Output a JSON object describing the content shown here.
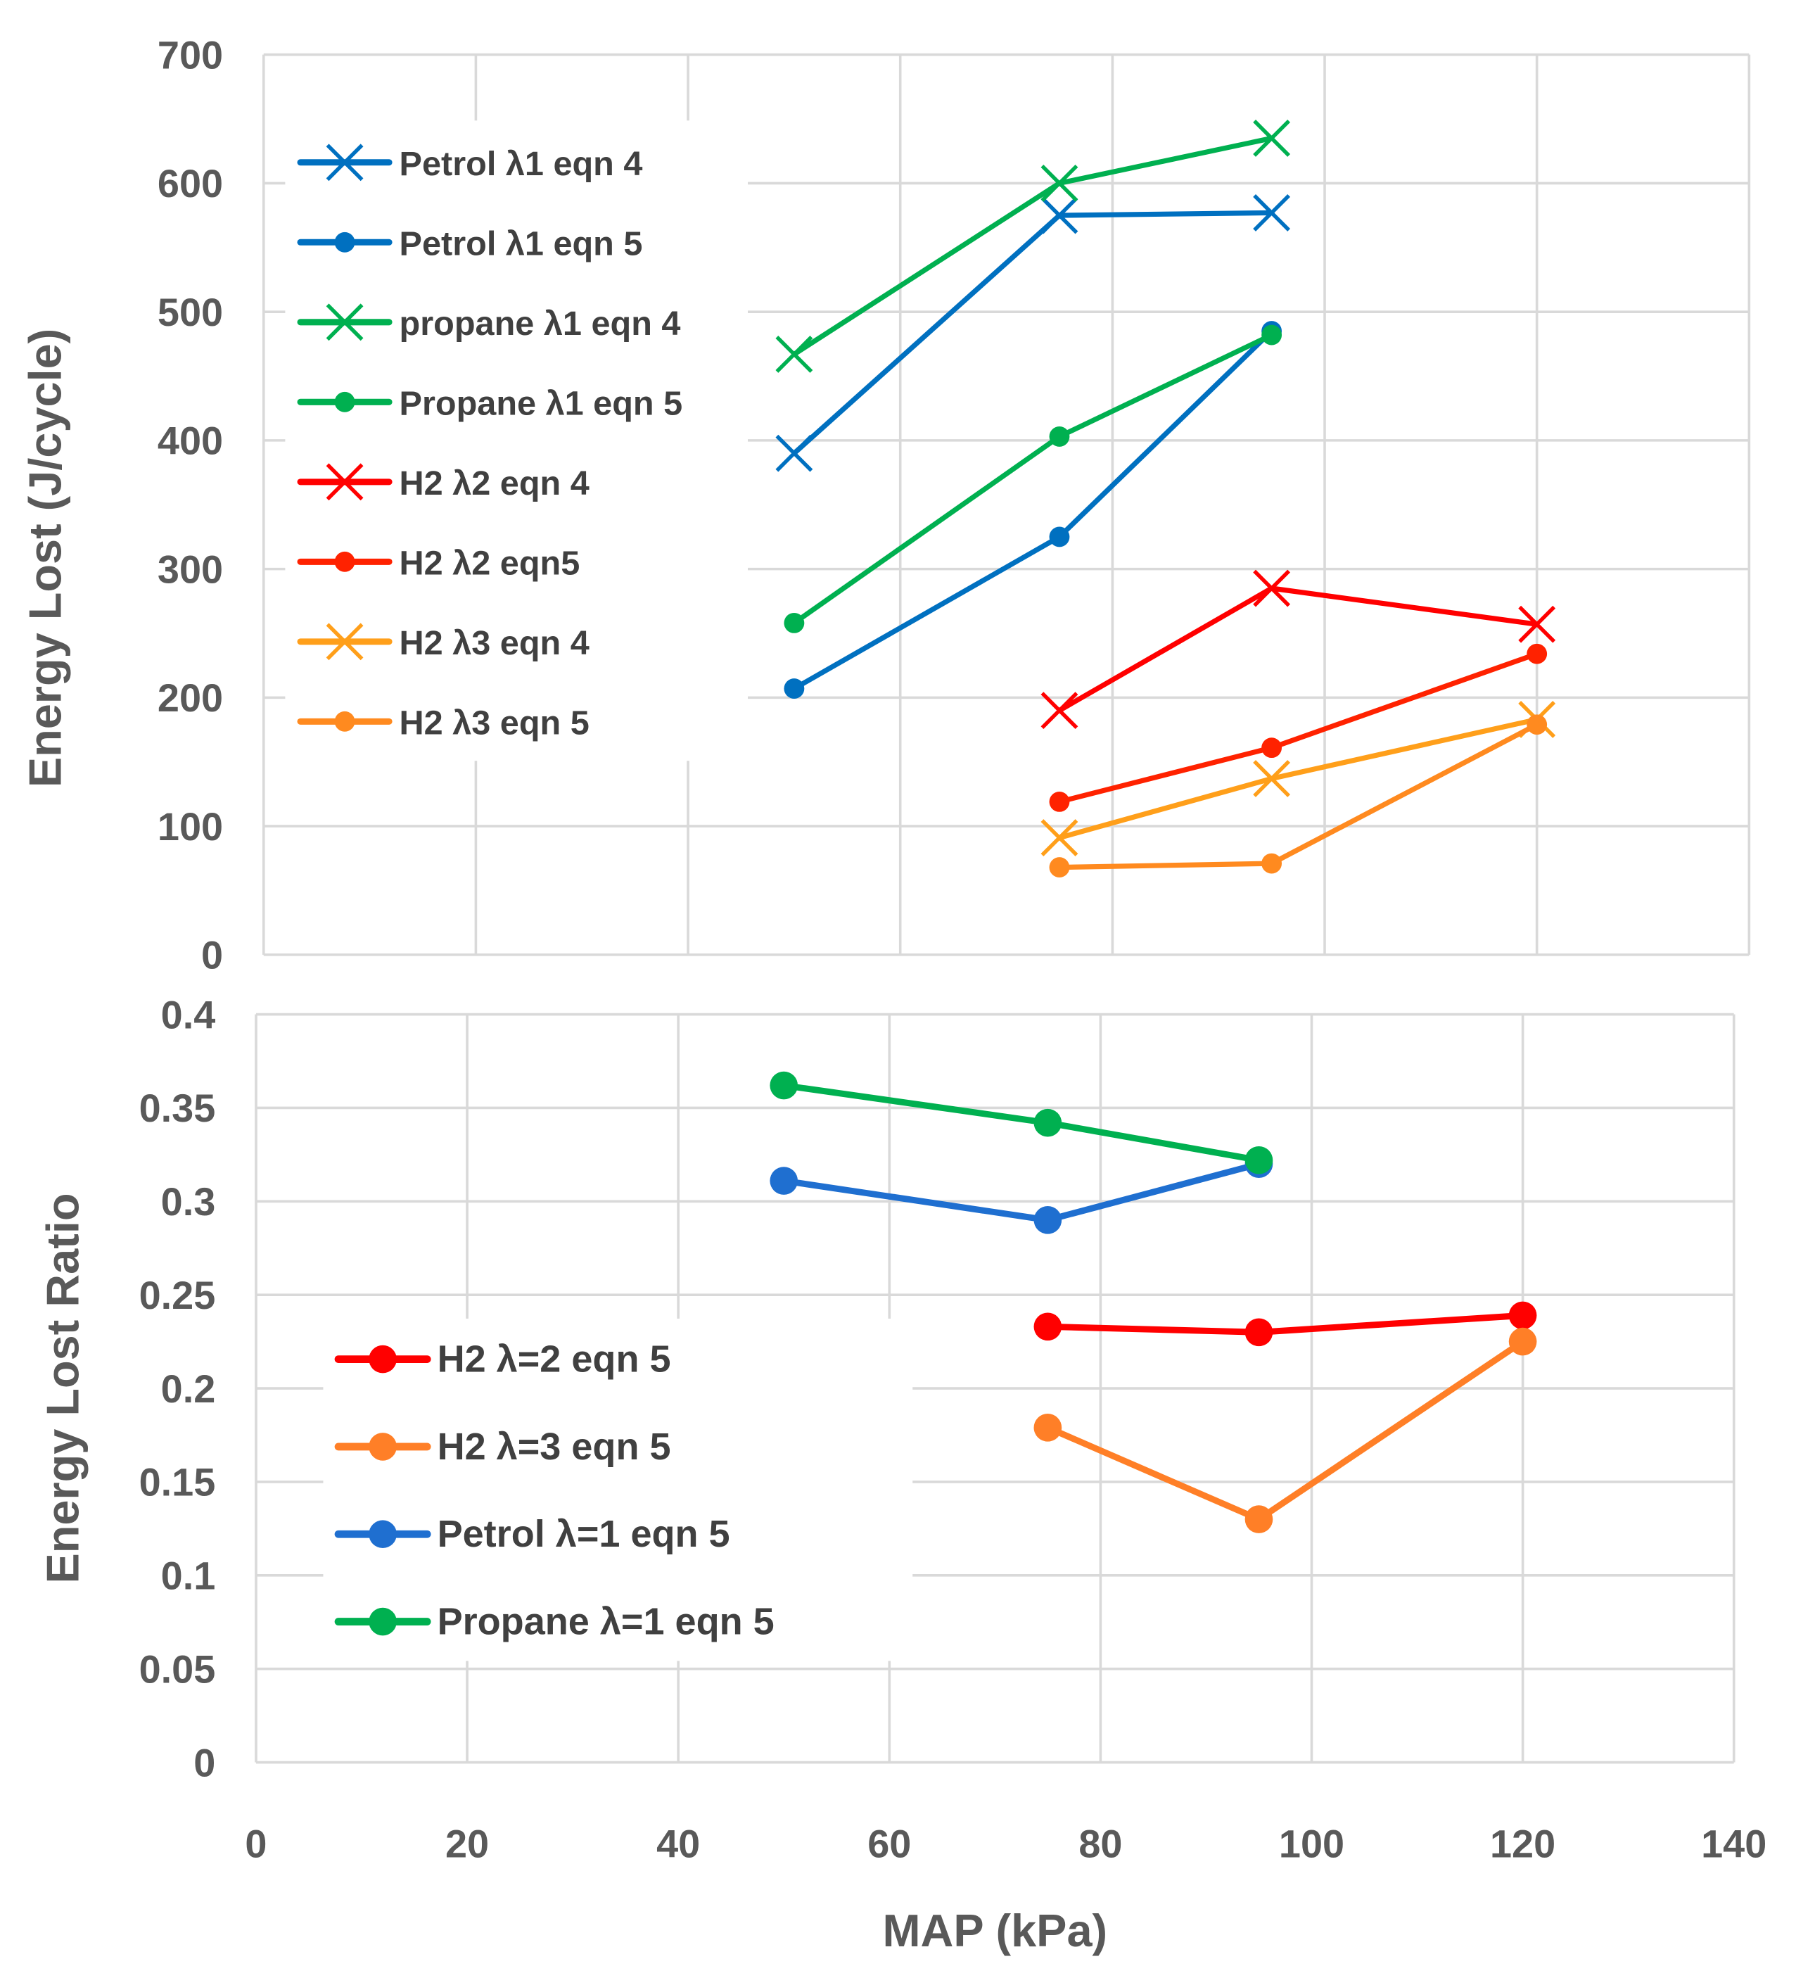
{
  "chart_data": [
    {
      "type": "line",
      "title": "",
      "xlabel": "",
      "ylabel": "Energy Lost   (J/cycle)",
      "xlim": [
        0,
        140
      ],
      "ylim": [
        0,
        700
      ],
      "xticks": [
        0,
        20,
        40,
        60,
        80,
        100,
        120,
        140
      ],
      "yticks": [
        "0",
        "100",
        "200",
        "300",
        "400",
        "500",
        "600",
        "700"
      ],
      "grid": true,
      "legend_position": "upper-left",
      "series": [
        {
          "name": "Petrol  λ1 eqn 4",
          "marker": "x",
          "color": "#0070C0",
          "x": [
            50,
            75,
            95
          ],
          "y": [
            390,
            575,
            577
          ]
        },
        {
          "name": "Petrol λ1 eqn 5",
          "marker": "o",
          "color": "#0070C0",
          "x": [
            50,
            75,
            95
          ],
          "y": [
            207,
            325,
            485
          ]
        },
        {
          "name": "propane  λ1 eqn 4",
          "marker": "x",
          "color": "#00B050",
          "x": [
            50,
            75,
            95
          ],
          "y": [
            467,
            600,
            635
          ]
        },
        {
          "name": "Propane λ1 eqn 5",
          "marker": "o",
          "color": "#00B050",
          "x": [
            50,
            75,
            95
          ],
          "y": [
            258,
            403,
            482
          ]
        },
        {
          "name": "H2 λ2 eqn 4",
          "marker": "x",
          "color": "#FF0000",
          "x": [
            75,
            95,
            120
          ],
          "y": [
            190,
            285,
            257
          ]
        },
        {
          "name": "H2 λ2 eqn5",
          "marker": "o",
          "color": "#FF2200",
          "x": [
            75,
            95,
            120
          ],
          "y": [
            119,
            161,
            234
          ]
        },
        {
          "name": "H2 λ3 eqn 4",
          "marker": "x",
          "color": "#FF9F1A",
          "x": [
            75,
            95,
            120
          ],
          "y": [
            91,
            137,
            183
          ]
        },
        {
          "name": "H2 λ3 eqn 5",
          "marker": "o",
          "color": "#FF8A1F",
          "x": [
            75,
            95,
            120
          ],
          "y": [
            68,
            71,
            179
          ]
        }
      ]
    },
    {
      "type": "line",
      "title": "",
      "xlabel": "MAP (kPa)",
      "ylabel": "Energy Lost Ratio",
      "xlim": [
        0,
        140
      ],
      "ylim": [
        0,
        0.4
      ],
      "xticks": [
        "0",
        "20",
        "40",
        "60",
        "80",
        "100",
        "120",
        "140"
      ],
      "yticks": [
        "0",
        "0.05",
        "0.1",
        "0.15",
        "0.2",
        "0.25",
        "0.3",
        "0.35",
        "0.4"
      ],
      "grid": true,
      "legend_position": "lower-left",
      "series": [
        {
          "name": "H2 λ=2 eqn 5",
          "marker": "o",
          "color": "#FF0000",
          "x": [
            75,
            95,
            120
          ],
          "y": [
            0.233,
            0.23,
            0.239
          ]
        },
        {
          "name": "H2 λ=3 eqn 5",
          "marker": "o",
          "color": "#FF7F27",
          "x": [
            75,
            95,
            120
          ],
          "y": [
            0.179,
            0.13,
            0.225
          ]
        },
        {
          "name": "Petrol λ=1 eqn 5",
          "marker": "o",
          "color": "#1F6FD0",
          "x": [
            50,
            75,
            95
          ],
          "y": [
            0.311,
            0.29,
            0.32
          ]
        },
        {
          "name": "Propane λ=1 eqn 5",
          "marker": "o",
          "color": "#00B050",
          "x": [
            50,
            75,
            95
          ],
          "y": [
            0.362,
            0.342,
            0.322
          ]
        }
      ]
    }
  ]
}
